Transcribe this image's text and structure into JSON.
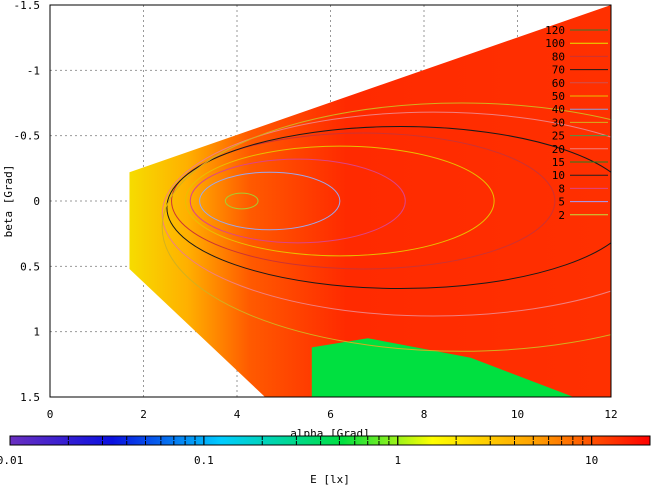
{
  "chart_data": {
    "type": "heatmap",
    "title": "",
    "xlabel": "alpha [Grad]",
    "ylabel": "beta [Grad]",
    "xlim": [
      0,
      12
    ],
    "ylim": [
      1.5,
      -1.5
    ],
    "y_axis_inverted": true,
    "xticks": [
      0,
      2,
      4,
      6,
      8,
      10,
      12
    ],
    "xtick_labels": [
      "0",
      "2",
      "4",
      "6",
      "8",
      "10",
      "12"
    ],
    "yticks": [
      -1.5,
      -1,
      -0.5,
      0,
      0.5,
      1,
      1.5
    ],
    "ytick_labels": [
      "-1.5",
      "-1",
      "-0.5",
      "0",
      "0.5",
      "1",
      "1.5"
    ],
    "grid": true,
    "colorbar": {
      "label": "E [lx]",
      "scale": "log",
      "range": [
        0.01,
        20
      ],
      "tick_labels": [
        "0.01",
        "0.1",
        "1",
        "10"
      ],
      "tick_values": [
        0.01,
        0.1,
        1,
        10
      ]
    },
    "legend": {
      "placement": "top-right",
      "entries": [
        {
          "label": "120",
          "color": "#2e7d32"
        },
        {
          "label": "100",
          "color": "#e6e600"
        },
        {
          "label": "80",
          "color": "#cc3333"
        },
        {
          "label": "70",
          "color": "#1a1a1a"
        },
        {
          "label": "60",
          "color": "#d05050"
        },
        {
          "label": "50",
          "color": "#e8c000"
        },
        {
          "label": "40",
          "color": "#8aa0e0"
        },
        {
          "label": "30",
          "color": "#d2b020"
        },
        {
          "label": "25",
          "color": "#4a9a4a"
        },
        {
          "label": "20",
          "color": "#f08080"
        },
        {
          "label": "15",
          "color": "#208020"
        },
        {
          "label": "10",
          "color": "#202020"
        },
        {
          "label": "8",
          "color": "#dd4488"
        },
        {
          "label": "5",
          "color": "#a0a0ff"
        },
        {
          "label": "2",
          "color": "#c0e040"
        }
      ]
    },
    "contours": [
      {
        "level": 2,
        "color": "#a6d030",
        "cx": 4.1,
        "cy": 0.0,
        "rx": 0.35,
        "ry": 0.06
      },
      {
        "level": 5,
        "color": "#9aa8f0",
        "cx": 4.7,
        "cy": 0.0,
        "rx": 1.5,
        "ry": 0.22
      },
      {
        "level": 8,
        "color": "#dd4488",
        "cx": 5.3,
        "cy": 0.0,
        "rx": 2.3,
        "ry": 0.32
      },
      {
        "level": 10,
        "color": "#e8c000",
        "cx": 6.2,
        "cy": 0.0,
        "rx": 3.3,
        "ry": 0.42
      },
      {
        "level": 15,
        "color": "#cc3333",
        "cx": 6.7,
        "cy": 0.0,
        "rx": 4.1,
        "ry": 0.52
      },
      {
        "level": 20,
        "color": "#1a1a1a",
        "cx": 7.5,
        "cy": 0.05,
        "rx": 5.0,
        "ry": 0.62
      },
      {
        "level": 30,
        "color": "#f08080",
        "cx": 8.2,
        "cy": 0.1,
        "rx": 5.8,
        "ry": 0.78
      },
      {
        "level": 40,
        "color": "#d2b020",
        "cx": 8.8,
        "cy": 0.2,
        "rx": 6.4,
        "ry": 0.95
      }
    ],
    "regions": [
      {
        "name": "illuminated-fan",
        "value_range": [
          1,
          20
        ],
        "dominant_color": "#ff2a00"
      },
      {
        "name": "low-illuminance-patch",
        "value_range": [
          0.5,
          1.5
        ],
        "dominant_color": "#00e040",
        "approx_alpha": [
          5.6,
          11.2
        ],
        "approx_beta": [
          1.05,
          1.5
        ]
      }
    ]
  }
}
